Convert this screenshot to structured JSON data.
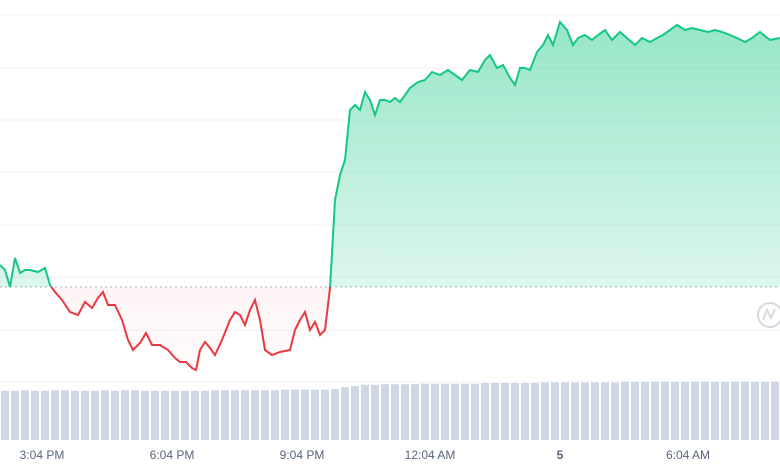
{
  "chart_data": {
    "type": "line",
    "x": [
      0,
      5,
      10,
      15,
      20,
      25,
      30,
      38,
      45,
      50,
      55,
      62,
      70,
      78,
      85,
      92,
      98,
      103,
      108,
      115,
      122,
      128,
      133,
      140,
      146,
      152,
      160,
      168,
      175,
      180,
      186,
      192,
      196,
      200,
      205,
      210,
      215,
      222,
      230,
      235,
      240,
      245,
      250,
      255,
      260,
      265,
      272,
      280,
      290,
      295,
      300,
      305,
      310,
      315,
      320,
      325,
      330,
      335,
      340,
      345,
      350,
      355,
      360,
      365,
      370,
      375,
      380,
      385,
      390,
      395,
      400,
      405,
      410,
      418,
      425,
      432,
      440,
      448,
      455,
      462,
      470,
      478,
      485,
      490,
      497,
      503,
      510,
      515,
      520,
      525,
      530,
      537,
      543,
      548,
      553,
      560,
      567,
      573,
      578,
      585,
      592,
      598,
      605,
      612,
      620,
      627,
      635,
      642,
      650,
      657,
      663,
      670,
      677,
      685,
      692,
      700,
      708,
      715,
      722,
      730,
      737,
      745,
      752,
      760,
      770,
      780
    ],
    "values": [
      117,
      112,
      95,
      124,
      109,
      112,
      112,
      110,
      114,
      97,
      90,
      82,
      70,
      67,
      80,
      74,
      84,
      90,
      77,
      77,
      62,
      42,
      32,
      39,
      49,
      37,
      37,
      32,
      24,
      20,
      20,
      14,
      12,
      32,
      40,
      34,
      27,
      42,
      62,
      70,
      67,
      57,
      72,
      82,
      62,
      32,
      27,
      30,
      32,
      52,
      62,
      70,
      52,
      60,
      47,
      52,
      94,
      182,
      207,
      222,
      272,
      277,
      272,
      290,
      282,
      267,
      282,
      282,
      280,
      284,
      280,
      287,
      294,
      300,
      302,
      310,
      307,
      312,
      307,
      302,
      312,
      310,
      322,
      327,
      314,
      317,
      304,
      297,
      314,
      314,
      312,
      330,
      337,
      347,
      337,
      360,
      352,
      337,
      344,
      347,
      342,
      347,
      352,
      342,
      350,
      344,
      337,
      344,
      340,
      344,
      347,
      352,
      357,
      352,
      354,
      352,
      350,
      352,
      350,
      347,
      344,
      340,
      344,
      350,
      342,
      344
    ],
    "baseline": 95,
    "up_color": "#16c784",
    "down_color": "#ea3943",
    "xlim": [
      0,
      780
    ],
    "xticks": [
      {
        "value": 42,
        "label": "3:04 PM"
      },
      {
        "value": 172,
        "label": "6:04 PM"
      },
      {
        "value": 302,
        "label": "9:04 PM"
      },
      {
        "value": 430,
        "label": "12:04 AM"
      },
      {
        "value": 560,
        "label": "5"
      },
      {
        "value": 688,
        "label": "6:04 AM"
      }
    ],
    "ylim": [
      0,
      367
    ],
    "yticks": [
      0,
      52,
      105,
      157,
      210,
      262,
      314,
      367
    ],
    "grid": true,
    "volume": {
      "color": "#cfd6e4",
      "y2lim": [
        0,
        100
      ],
      "values": [
        82,
        82,
        83,
        82,
        82,
        83,
        83,
        82,
        82,
        82,
        83,
        82,
        83,
        83,
        82,
        82,
        82,
        82,
        82,
        82,
        82,
        83,
        83,
        83,
        83,
        83,
        83,
        83,
        84,
        84,
        84,
        84,
        84,
        85,
        88,
        90,
        92,
        92,
        93,
        93,
        93,
        93,
        94,
        94,
        94,
        94,
        94,
        94,
        95,
        95,
        95,
        95,
        95,
        95,
        96,
        96,
        96,
        96,
        96,
        96,
        96,
        96,
        97,
        97,
        97,
        97,
        97,
        97,
        97,
        97,
        97,
        97,
        97,
        97,
        97,
        97,
        97,
        97
      ]
    }
  }
}
